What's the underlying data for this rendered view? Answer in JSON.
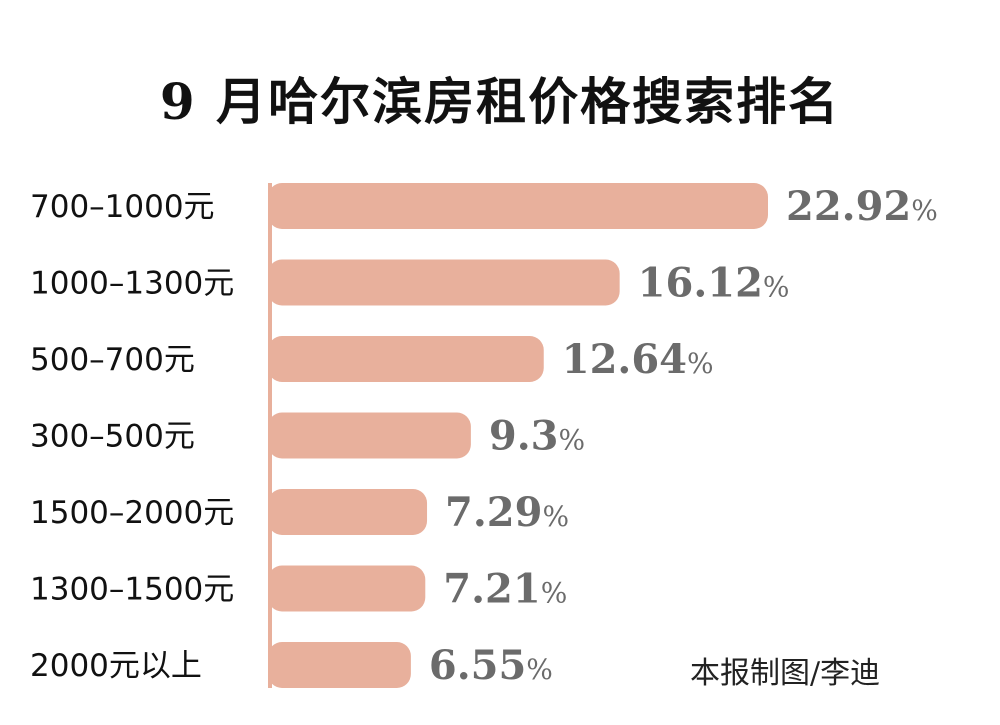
{
  "credit": "本报制图/李迪",
  "chart_data": {
    "type": "bar",
    "orientation": "horizontal",
    "title": "9 月哈尔滨房租价格搜索排名",
    "categories": [
      "700–1000元",
      "1000–1300元",
      "500–700元",
      "300–500元",
      "1500–2000元",
      "1300–1500元",
      "2000元以上"
    ],
    "values": [
      22.92,
      16.12,
      12.64,
      9.3,
      7.29,
      7.21,
      6.55
    ],
    "value_labels": [
      "22.92",
      "16.12",
      "12.64",
      "9.3",
      "7.29",
      "7.21",
      "6.55"
    ],
    "value_suffix": "%",
    "bar_color": "#e8b09c",
    "label_color": "#6b6b6b",
    "xlim": [
      0,
      22.92
    ]
  }
}
